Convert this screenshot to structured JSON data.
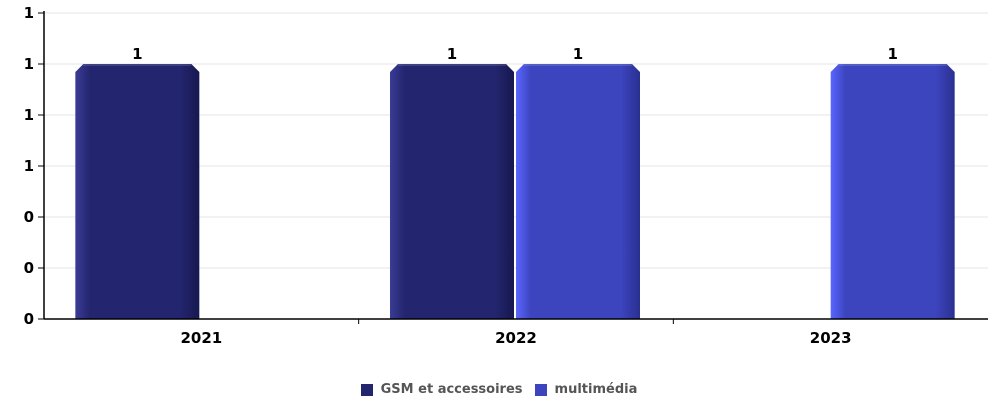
{
  "chart_data": {
    "type": "bar",
    "categories": [
      "2021",
      "2022",
      "2023"
    ],
    "series": [
      {
        "name": "GSM et accessoires",
        "values": [
          1,
          1,
          null
        ],
        "color": "#23256e"
      },
      {
        "name": "multimédia",
        "values": [
          null,
          1,
          1
        ],
        "color": "#3c44be"
      }
    ],
    "data_labels": [
      "1",
      "1",
      "1",
      "1"
    ],
    "y_ticks": [
      "0",
      "0",
      "0",
      "1",
      "1",
      "1",
      "1"
    ],
    "ylim": [
      0,
      1.2
    ],
    "grid": true,
    "legend_position": "bottom"
  }
}
